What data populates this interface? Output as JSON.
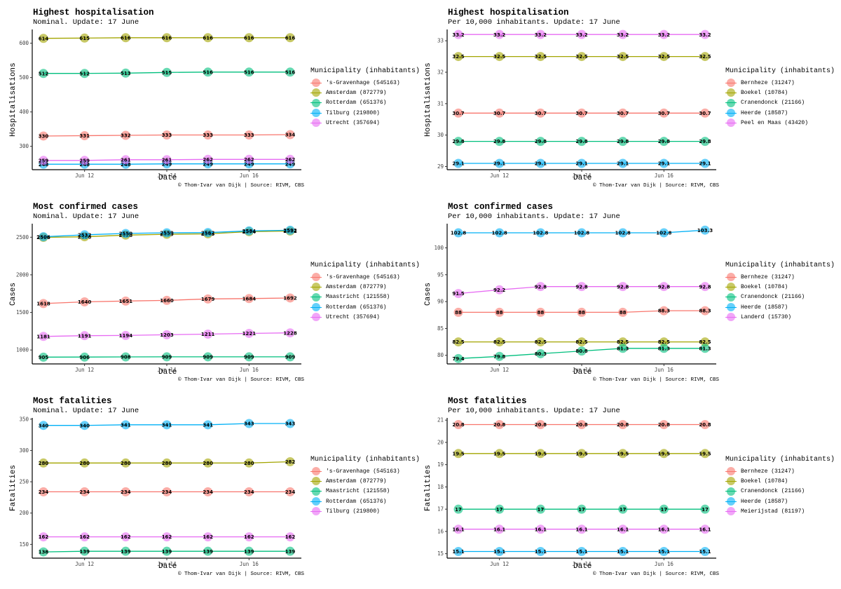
{
  "legend_title": "Municipality (inhabitants)",
  "x_axis_label": "Date",
  "caption": "© Thom-Ivar van Dijk | Source: RIVM, CBS",
  "dates": [
    "Jun 11",
    "Jun 12",
    "Jun 13",
    "Jun 14",
    "Jun 15",
    "Jun 16",
    "Jun 17"
  ],
  "x_tick_labels": [
    "Jun 12",
    "Jun 14",
    "Jun 16"
  ],
  "colors": {
    "red": "#F8766D",
    "olive": "#A3A500",
    "green": "#00BF7D",
    "blue": "#00B0F6",
    "magenta": "#E76BF3"
  },
  "chart_data": [
    {
      "type": "line",
      "title": "Highest hospitalisation",
      "subtitle": "Nominal. Update: 17 June",
      "ylabel": "Hospitalisations",
      "ylim": [
        232,
        640
      ],
      "yticks": [
        300,
        400,
        500,
        600
      ],
      "x": [
        "Jun 11",
        "Jun 12",
        "Jun 13",
        "Jun 14",
        "Jun 15",
        "Jun 16",
        "Jun 17"
      ],
      "series": [
        {
          "name": "'s-Gravenhage (545163)",
          "color": "red",
          "values": [
            330,
            331,
            332,
            333,
            333,
            333,
            334
          ]
        },
        {
          "name": "Amsterdam (872779)",
          "color": "olive",
          "values": [
            614,
            615,
            616,
            616,
            616,
            616,
            616
          ]
        },
        {
          "name": "Rotterdam (651376)",
          "color": "green",
          "values": [
            512,
            512,
            513,
            515,
            516,
            516,
            516
          ]
        },
        {
          "name": "Tilburg (219800)",
          "color": "blue",
          "values": [
            248,
            248,
            248,
            249,
            249,
            249,
            249
          ]
        },
        {
          "name": "Utrecht (357694)",
          "color": "magenta",
          "values": [
            259,
            259,
            261,
            261,
            262,
            262,
            262
          ]
        }
      ]
    },
    {
      "type": "line",
      "title": "Highest hospitalisation",
      "subtitle": "Per 10,000 inhabitants. Update: 17 June",
      "ylabel": "Hospitalisations",
      "ylim": [
        28.9,
        33.36
      ],
      "yticks": [
        29,
        30,
        31,
        32,
        33
      ],
      "x": [
        "Jun 11",
        "Jun 12",
        "Jun 13",
        "Jun 14",
        "Jun 15",
        "Jun 16",
        "Jun 17"
      ],
      "series": [
        {
          "name": "Bernheze (31247)",
          "color": "red",
          "values": [
            30.7,
            30.7,
            30.7,
            30.7,
            30.7,
            30.7,
            30.7
          ]
        },
        {
          "name": "Boekel (10784)",
          "color": "olive",
          "values": [
            32.5,
            32.5,
            32.5,
            32.5,
            32.5,
            32.5,
            32.5
          ]
        },
        {
          "name": "Cranendonck (21166)",
          "color": "green",
          "values": [
            29.8,
            29.8,
            29.8,
            29.8,
            29.8,
            29.8,
            29.8
          ]
        },
        {
          "name": "Heerde (18587)",
          "color": "blue",
          "values": [
            29.1,
            29.1,
            29.1,
            29.1,
            29.1,
            29.1,
            29.1
          ]
        },
        {
          "name": "Peel en Maas (43420)",
          "color": "magenta",
          "values": [
            33.2,
            33.2,
            33.2,
            33.2,
            33.2,
            33.2,
            33.2
          ]
        }
      ]
    },
    {
      "type": "line",
      "title": "Most confirmed cases",
      "subtitle": "Nominal. Update: 17 June",
      "ylabel": "Cases",
      "ylim": [
        815,
        2680
      ],
      "yticks": [
        1000,
        1500,
        2000,
        2500
      ],
      "x": [
        "Jun 11",
        "Jun 12",
        "Jun 13",
        "Jun 14",
        "Jun 15",
        "Jun 16",
        "Jun 17"
      ],
      "series": [
        {
          "name": "'s-Gravenhage (545163)",
          "color": "red",
          "values": [
            1618,
            1640,
            1651,
            1660,
            1679,
            1684,
            1692
          ]
        },
        {
          "name": "Amsterdam (872779)",
          "color": "olive",
          "values": [
            2498,
            2506,
            2528,
            2539,
            2545,
            2574,
            2582
          ]
        },
        {
          "name": "Maastricht (121558)",
          "color": "green",
          "values": [
            905,
            906,
            908,
            909,
            909,
            909,
            909
          ]
        },
        {
          "name": "Rotterdam (651376)",
          "color": "blue",
          "values": [
            2506,
            2532,
            2550,
            2559,
            2562,
            2584,
            2592
          ]
        },
        {
          "name": "Utrecht (357694)",
          "color": "magenta",
          "values": [
            1181,
            1191,
            1194,
            1203,
            1211,
            1221,
            1228
          ]
        }
      ]
    },
    {
      "type": "line",
      "title": "Most confirmed cases",
      "subtitle": "Per 10,000 inhabitants. Update: 17 June",
      "ylabel": "Cases",
      "ylim": [
        78.4,
        104.5
      ],
      "yticks": [
        80,
        85,
        90,
        95,
        100
      ],
      "x": [
        "Jun 11",
        "Jun 12",
        "Jun 13",
        "Jun 14",
        "Jun 15",
        "Jun 16",
        "Jun 17"
      ],
      "series": [
        {
          "name": "Bernheze (31247)",
          "color": "red",
          "values": [
            88,
            88,
            88,
            88,
            88,
            88.3,
            88.3
          ]
        },
        {
          "name": "Boekel (10784)",
          "color": "olive",
          "values": [
            82.5,
            82.5,
            82.5,
            82.5,
            82.5,
            82.5,
            82.5
          ]
        },
        {
          "name": "Cranendonck (21166)",
          "color": "green",
          "values": [
            79.4,
            79.8,
            80.3,
            80.8,
            81.3,
            81.3,
            81.3
          ]
        },
        {
          "name": "Heerde (18587)",
          "color": "blue",
          "values": [
            102.8,
            102.8,
            102.8,
            102.8,
            102.8,
            102.8,
            103.3
          ]
        },
        {
          "name": "Landerd (15730)",
          "color": "magenta",
          "values": [
            91.5,
            92.2,
            92.8,
            92.8,
            92.8,
            92.8,
            92.8
          ]
        }
      ]
    },
    {
      "type": "line",
      "title": "Most fatalities",
      "subtitle": "Nominal. Update: 17 June",
      "ylabel": "Fatalities",
      "ylim": [
        128,
        352
      ],
      "yticks": [
        150,
        200,
        250,
        300,
        350
      ],
      "x": [
        "Jun 11",
        "Jun 12",
        "Jun 13",
        "Jun 14",
        "Jun 15",
        "Jun 16",
        "Jun 17"
      ],
      "series": [
        {
          "name": "'s-Gravenhage (545163)",
          "color": "red",
          "values": [
            234,
            234,
            234,
            234,
            234,
            234,
            234
          ]
        },
        {
          "name": "Amsterdam (872779)",
          "color": "olive",
          "values": [
            280,
            280,
            280,
            280,
            280,
            280,
            282
          ]
        },
        {
          "name": "Maastricht (121558)",
          "color": "green",
          "values": [
            138,
            139,
            139,
            139,
            139,
            139,
            139
          ]
        },
        {
          "name": "Rotterdam (651376)",
          "color": "blue",
          "values": [
            340,
            340,
            341,
            341,
            341,
            343,
            343
          ]
        },
        {
          "name": "Tilburg (219800)",
          "color": "magenta",
          "values": [
            162,
            162,
            162,
            162,
            162,
            162,
            162
          ]
        }
      ]
    },
    {
      "type": "line",
      "title": "Most fatalities",
      "subtitle": "Per 10,000 inhabitants. Update: 17 June",
      "ylabel": "Fatalities",
      "ylim": [
        14.8,
        21.1
      ],
      "yticks": [
        15,
        16,
        17,
        18,
        19,
        20,
        21
      ],
      "x": [
        "Jun 11",
        "Jun 12",
        "Jun 13",
        "Jun 14",
        "Jun 15",
        "Jun 16",
        "Jun 17"
      ],
      "series": [
        {
          "name": "Bernheze (31247)",
          "color": "red",
          "values": [
            20.8,
            20.8,
            20.8,
            20.8,
            20.8,
            20.8,
            20.8
          ]
        },
        {
          "name": "Boekel (10784)",
          "color": "olive",
          "values": [
            19.5,
            19.5,
            19.5,
            19.5,
            19.5,
            19.5,
            19.5
          ]
        },
        {
          "name": "Cranendonck (21166)",
          "color": "green",
          "values": [
            17,
            17,
            17,
            17,
            17,
            17,
            17
          ]
        },
        {
          "name": "Heerde (18587)",
          "color": "blue",
          "values": [
            15.1,
            15.1,
            15.1,
            15.1,
            15.1,
            15.1,
            15.1
          ]
        },
        {
          "name": "Meierijstad (81197)",
          "color": "magenta",
          "values": [
            16.1,
            16.1,
            16.1,
            16.1,
            16.1,
            16.1,
            16.1
          ]
        }
      ]
    }
  ]
}
